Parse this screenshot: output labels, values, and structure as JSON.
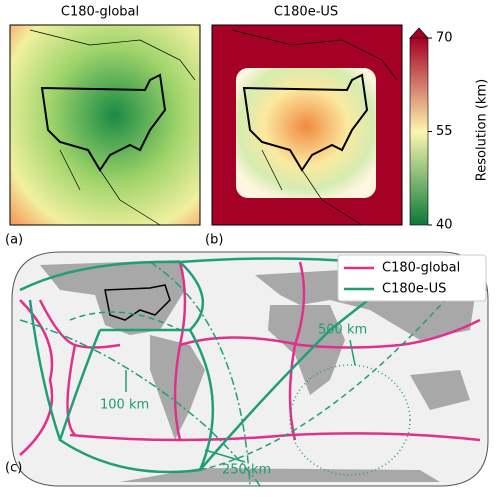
{
  "panels": [
    {
      "title": "C180-global",
      "label": "(a)"
    },
    {
      "title": "C180e-US",
      "label": "(b)"
    },
    {
      "label": "(c)"
    }
  ],
  "colorbar": {
    "label": "Resolution (km)",
    "lim": [
      40,
      70
    ],
    "ticks": [
      40,
      55,
      70
    ],
    "colors": [
      "#0a7a3a",
      "#fdf5b0",
      "#a50026"
    ]
  },
  "legend": [
    {
      "name": "C180-global",
      "color": "#e0308a"
    },
    {
      "name": "C180e-US",
      "color": "#1f9e78"
    }
  ],
  "annotations": [
    "500 km",
    "100 km",
    "250 km"
  ]
}
